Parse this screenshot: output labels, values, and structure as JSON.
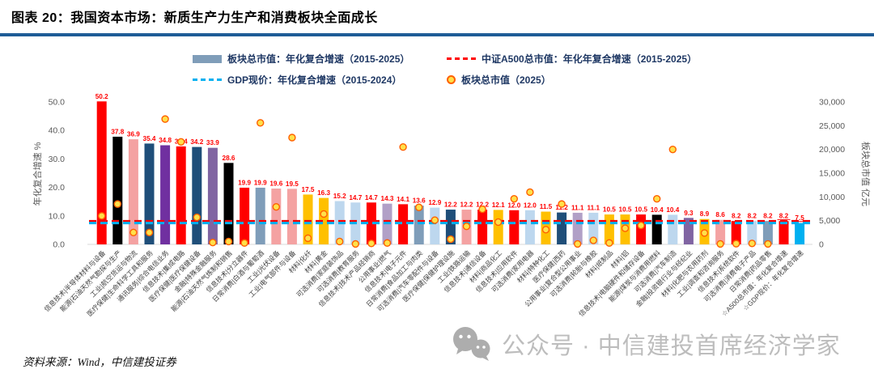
{
  "header": {
    "title": "图表 20：我国资本市场：新质生产力生产和消费板块全面成长",
    "rule_color": "#1E5C97"
  },
  "legend": {
    "items": [
      {
        "label": "板块总市值：年化复合增速（2015-2025）",
        "swatch": "bar",
        "color": "#7F9DB9"
      },
      {
        "label": "中证A500总市值：年化年复合增速（2015-2025）",
        "swatch": "dashed-line",
        "color": "#FF0000"
      },
      {
        "label": "GDP现价：年化复合增速（2015-2024）",
        "swatch": "dashed-line",
        "color": "#00B0F0"
      },
      {
        "label": "板块总市值（2025）",
        "swatch": "dot",
        "color": "#FFC000"
      }
    ]
  },
  "footer": {
    "source": "资料来源：Wind，中信建投证券",
    "watermark": "公众号 · 中信建投首席经济学家"
  },
  "chart_data": {
    "type": "bar",
    "title": "我国资本市场：新质生产力生产和消费板块全面成长",
    "ylabel_left": "年化复合增速 %",
    "ylabel_right": "板块总市值 亿元",
    "ylim_left": [
      0,
      50
    ],
    "ylim_right": [
      0,
      30000
    ],
    "left_ticks": [
      "0.0",
      "10.0",
      "20.0",
      "30.0",
      "40.0",
      "50.0"
    ],
    "right_ticks": [
      "0",
      "5,000",
      "10,000",
      "15,000",
      "20,000",
      "25,000",
      "30,000"
    ],
    "grid": false,
    "value_label_color": "#FF0000",
    "dot_style": {
      "fill": "#FFE04A",
      "stroke": "#FF6000"
    },
    "reference_lines": [
      {
        "name": "中证A500总市值：年化年复合增速（2015-2025）",
        "value": 8.2,
        "color": "#FF0000"
      },
      {
        "name": "GDP现价：年化复合增速（2015-2024）",
        "value": 7.5,
        "color": "#00B0F0"
      }
    ],
    "sector_colors": {
      "信息技术": "#FF0000",
      "能源": "#000000",
      "工业": "#F4A2A2",
      "医疗保健": "#1F4E79",
      "通讯服务": "#7030A0",
      "金融": "#8064A2",
      "日常消费": "#7F9DB9",
      "材料": "#FFC000",
      "可选消费": "#BDD7EE",
      "公用事业": "#B1A0C7",
      "A500": "#FF0000",
      "GDP": "#00B0F0"
    },
    "bars": [
      {
        "label": "信息技术|半导体材料与设备",
        "sector": "信息技术",
        "growth": 50.2,
        "mktcap_2025": 6000
      },
      {
        "label": "能源|石油天然气勘探与生产",
        "sector": "能源",
        "growth": 37.8,
        "mktcap_2025": 8500
      },
      {
        "label": "工业|航空货运与物流",
        "sector": "工业",
        "growth": 36.9,
        "mktcap_2025": 2500
      },
      {
        "label": "医疗保健|生命科学工具和服务",
        "sector": "医疗保健",
        "growth": 35.4,
        "mktcap_2025": 2500
      },
      {
        "label": "通讯服务|综合电信业务",
        "sector": "通讯服务",
        "growth": 34.8,
        "mktcap_2025": 26400
      },
      {
        "label": "信息技术|集成电路",
        "sector": "信息技术",
        "growth": 34.4,
        "mktcap_2025": 21600
      },
      {
        "label": "医疗保健|医疗保健设备",
        "sector": "医疗保健",
        "growth": 34.2,
        "mktcap_2025": 5700
      },
      {
        "label": "金融|特殊金融服务",
        "sector": "金融",
        "growth": 33.9,
        "mktcap_2025": 400
      },
      {
        "label": "能源|石油天然气炼制和销售",
        "sector": "能源",
        "growth": 28.6,
        "mktcap_2025": 600
      },
      {
        "label": "信息技术|分立器件",
        "sector": "信息技术",
        "growth": 19.9,
        "mktcap_2025": 300
      },
      {
        "label": "日常消费|白酒与葡萄酒",
        "sector": "日常消费",
        "growth": 19.9,
        "mktcap_2025": 25600
      },
      {
        "label": "工业|光伏设备",
        "sector": "工业",
        "growth": 19.6,
        "mktcap_2025": 7900
      },
      {
        "label": "工业|电气部件与设备",
        "sector": "工业",
        "growth": 19.5,
        "mktcap_2025": 22500
      },
      {
        "label": "材料|化纤",
        "sector": "材料",
        "growth": 17.5,
        "mktcap_2025": 1300
      },
      {
        "label": "材料|黄金",
        "sector": "材料",
        "growth": 16.3,
        "mktcap_2025": 6400
      },
      {
        "label": "可选消费|家庭装饰品",
        "sector": "可选消费",
        "growth": 15.2,
        "mktcap_2025": 600
      },
      {
        "label": "可选消费|教育服务",
        "sector": "可选消费",
        "growth": 14.7,
        "mktcap_2025": 100
      },
      {
        "label": "信息技术|技术产品经销商",
        "sector": "信息技术",
        "growth": 14.7,
        "mktcap_2025": 200
      },
      {
        "label": "公用事业|燃气",
        "sector": "公用事业",
        "growth": 14.3,
        "mktcap_2025": 300
      },
      {
        "label": "信息技术|电子元件",
        "sector": "信息技术",
        "growth": 14.1,
        "mktcap_2025": 20500
      },
      {
        "label": "日常消费|食品加工与肉类",
        "sector": "日常消费",
        "growth": 13.6,
        "mktcap_2025": 7800
      },
      {
        "label": "可选消费|汽车零配件与设备",
        "sector": "可选消费",
        "growth": 12.9,
        "mktcap_2025": 5100
      },
      {
        "label": "医疗保健|保健护理设施",
        "sector": "医疗保健",
        "growth": 12.2,
        "mktcap_2025": 1100
      },
      {
        "label": "工业|铁路运输",
        "sector": "工业",
        "growth": 12.2,
        "mktcap_2025": 3800
      },
      {
        "label": "信息技术|通信设备",
        "sector": "信息技术",
        "growth": 12.2,
        "mktcap_2025": 7400
      },
      {
        "label": "材料|商品化工",
        "sector": "材料",
        "growth": 12.1,
        "mktcap_2025": 4700
      },
      {
        "label": "信息技术|应用软件",
        "sector": "信息技术",
        "growth": 12.0,
        "mktcap_2025": 9600
      },
      {
        "label": "可选消费|家用电器",
        "sector": "可选消费",
        "growth": 12.0,
        "mktcap_2025": 11000
      },
      {
        "label": "材料|特种化工",
        "sector": "材料",
        "growth": 11.5,
        "mktcap_2025": 3100
      },
      {
        "label": "医疗保健|西药",
        "sector": "医疗保健",
        "growth": 11.2,
        "mktcap_2025": 8500
      },
      {
        "label": "公用事业|复合型公用事业",
        "sector": "公用事业",
        "growth": 11.1,
        "mktcap_2025": 100
      },
      {
        "label": "可选消费|轮胎与橡胶",
        "sector": "可选消费",
        "growth": 11.1,
        "mktcap_2025": 850
      },
      {
        "label": "材料|纸制品",
        "sector": "材料",
        "growth": 10.5,
        "mktcap_2025": 300
      },
      {
        "label": "材料|铝",
        "sector": "材料",
        "growth": 10.5,
        "mktcap_2025": 3400
      },
      {
        "label": "信息技术|电脑硬件和储存设备",
        "sector": "信息技术",
        "growth": 10.5,
        "mktcap_2025": 4000
      },
      {
        "label": "能源|煤炭与消费用燃料",
        "sector": "能源",
        "growth": 10.4,
        "mktcap_2025": 9600
      },
      {
        "label": "可选消费|汽车制造",
        "sector": "可选消费",
        "growth": 10.4,
        "mktcap_2025": 20000
      },
      {
        "label": "金融|投资银行业与经纪业",
        "sector": "金融",
        "growth": 9.3,
        "mktcap_2025": null
      },
      {
        "label": "材料|化肥与农用药剂",
        "sector": "材料",
        "growth": 8.9,
        "mktcap_2025": 2400
      },
      {
        "label": "工业|调查和咨询服务",
        "sector": "工业",
        "growth": 8.6,
        "mktcap_2025": 100
      },
      {
        "label": "信息技术|系统软件",
        "sector": "信息技术",
        "growth": 8.2,
        "mktcap_2025": 150
      },
      {
        "label": "可选消费|消费电子产品",
        "sector": "可选消费",
        "growth": 8.2,
        "mktcap_2025": 200
      },
      {
        "label": "日常消费|药品零售",
        "sector": "日常消费",
        "growth": 8.2,
        "mktcap_2025": 100
      },
      {
        "label": "☆A500总市值：年化复合增速",
        "sector": "A500",
        "growth": 8.2,
        "mktcap_2025": null,
        "underline": true
      },
      {
        "label": "☆GDP现价：年化复合增速",
        "sector": "GDP",
        "growth": 7.5,
        "mktcap_2025": null,
        "underline": true
      }
    ]
  }
}
